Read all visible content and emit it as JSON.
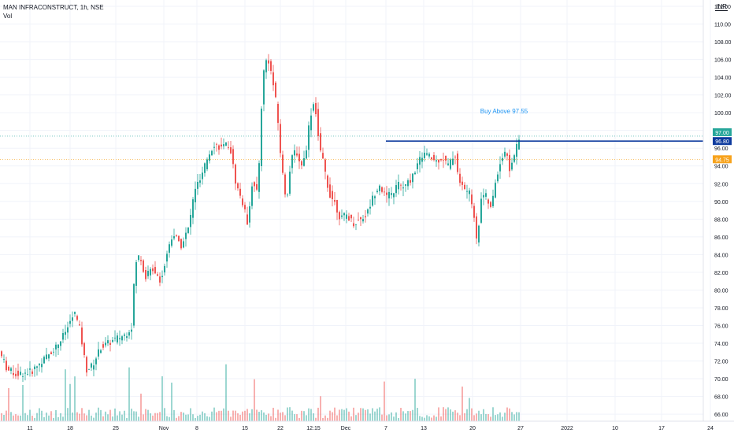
{
  "header": {
    "symbol_line": "MAN INFRACONSTRUCT, 1h, NSE",
    "volume_label": "Vol"
  },
  "currency": "INR",
  "annotation": {
    "text": "Buy Above 97.55",
    "color": "#2196f3"
  },
  "price_badges": [
    {
      "value": "97.00",
      "color": "#26a69a"
    },
    {
      "value": "96.80",
      "color": "#0d3a9e"
    },
    {
      "value": "94.75",
      "color": "#f7a21b"
    }
  ],
  "colors": {
    "up": "#26a69a",
    "down": "#ef5350",
    "resistance": "#0d3a9e",
    "support": "#f7a21b",
    "grid": "#f0f3fa"
  },
  "chart_data": {
    "type": "candlestick",
    "ylim": [
      64.5,
      112
    ],
    "y_ticks": [
      "66.00",
      "68.00",
      "70.00",
      "72.00",
      "74.00",
      "76.00",
      "78.00",
      "80.00",
      "82.00",
      "84.00",
      "86.00",
      "88.00",
      "90.00",
      "92.00",
      "94.00",
      "96.00",
      "98.00",
      "100.00",
      "102.00",
      "104.00",
      "106.00",
      "108.00",
      "110.00",
      "112.00"
    ],
    "x_ticks": [
      "11",
      "18",
      "25",
      "Nov",
      "8",
      "15",
      "22",
      "12:15",
      "Dec",
      "7",
      "13",
      "20",
      "27",
      "2022",
      "10",
      "17",
      "24"
    ],
    "horizontal_lines": [
      {
        "value": 96.8,
        "color": "#0d3a9e",
        "label": "resistance"
      },
      {
        "value": 97.0,
        "color": "#26a69a",
        "label": "last"
      },
      {
        "value": 94.75,
        "color": "#f7a21b",
        "label": "support"
      }
    ],
    "price_path": [
      [
        0,
        73.0
      ],
      [
        10,
        71.0
      ],
      [
        22,
        70.5
      ],
      [
        40,
        70.8
      ],
      [
        60,
        72.5
      ],
      [
        75,
        74.0
      ],
      [
        85,
        75.5
      ],
      [
        95,
        77.5
      ],
      [
        102,
        75.5
      ],
      [
        110,
        71.0
      ],
      [
        118,
        71.5
      ],
      [
        128,
        73.5
      ],
      [
        138,
        74.0
      ],
      [
        148,
        74.5
      ],
      [
        160,
        75.0
      ],
      [
        168,
        76.0
      ],
      [
        172,
        83.0
      ],
      [
        178,
        84.0
      ],
      [
        185,
        81.5
      ],
      [
        195,
        82.5
      ],
      [
        205,
        81.0
      ],
      [
        212,
        84.0
      ],
      [
        220,
        86.5
      ],
      [
        230,
        85.0
      ],
      [
        240,
        87.0
      ],
      [
        248,
        91.5
      ],
      [
        256,
        92.5
      ],
      [
        264,
        95.0
      ],
      [
        272,
        96.5
      ],
      [
        282,
        96.0
      ],
      [
        292,
        96.5
      ],
      [
        300,
        92.0
      ],
      [
        308,
        90.0
      ],
      [
        315,
        87.5
      ],
      [
        320,
        92.0
      ],
      [
        328,
        91.0
      ],
      [
        334,
        104.0
      ],
      [
        340,
        106.5
      ],
      [
        346,
        104.0
      ],
      [
        352,
        100.5
      ],
      [
        358,
        94.0
      ],
      [
        364,
        90.0
      ],
      [
        370,
        94.5
      ],
      [
        376,
        96.0
      ],
      [
        382,
        94.0
      ],
      [
        388,
        95.0
      ],
      [
        394,
        99.5
      ],
      [
        400,
        101.5
      ],
      [
        406,
        96.0
      ],
      [
        412,
        94.0
      ],
      [
        418,
        91.0
      ],
      [
        425,
        90.0
      ],
      [
        433,
        88.0
      ],
      [
        440,
        88.5
      ],
      [
        450,
        87.5
      ],
      [
        458,
        88.0
      ],
      [
        466,
        88.5
      ],
      [
        474,
        90.5
      ],
      [
        482,
        92.0
      ],
      [
        490,
        90.5
      ],
      [
        498,
        90.8
      ],
      [
        506,
        92.0
      ],
      [
        514,
        91.5
      ],
      [
        522,
        92.5
      ],
      [
        530,
        94.0
      ],
      [
        538,
        95.5
      ],
      [
        546,
        95.0
      ],
      [
        554,
        94.5
      ],
      [
        562,
        95.0
      ],
      [
        570,
        94.0
      ],
      [
        578,
        95.5
      ],
      [
        584,
        92.0
      ],
      [
        590,
        91.5
      ],
      [
        596,
        91.0
      ],
      [
        602,
        89.0
      ],
      [
        606,
        85.0
      ],
      [
        612,
        91.0
      ],
      [
        618,
        90.5
      ],
      [
        624,
        89.0
      ],
      [
        630,
        92.5
      ],
      [
        636,
        94.5
      ],
      [
        642,
        95.8
      ],
      [
        648,
        93.5
      ],
      [
        654,
        95.5
      ],
      [
        660,
        97.0
      ]
    ],
    "last_x": 660
  }
}
